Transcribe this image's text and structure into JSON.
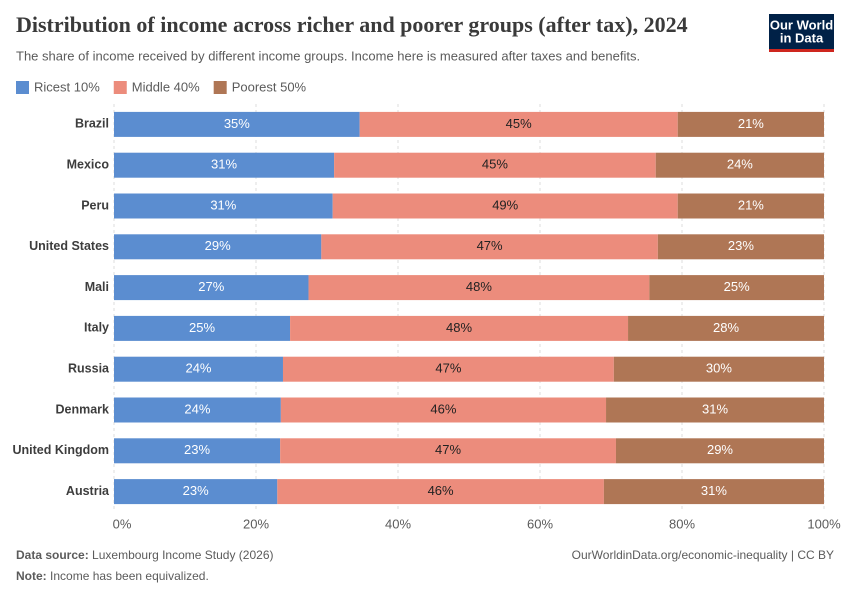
{
  "chart_data": {
    "type": "stacked-bar-horizontal",
    "title": "Distribution of income across richer and poorer groups (after tax), 2024",
    "subtitle": "The share of income received by different income groups. Income here is measured after taxes and benefits.",
    "logo": [
      "Our World",
      "in Data"
    ],
    "categories": [
      "Brazil",
      "Mexico",
      "Peru",
      "United States",
      "Mali",
      "Italy",
      "Russia",
      "Denmark",
      "United Kingdom",
      "Austria"
    ],
    "series": [
      {
        "name": "Ricest 10%",
        "color": "#5b8dd0",
        "label_color": "#ffffff",
        "values": [
          34.6,
          31.0,
          30.8,
          29.2,
          27.4,
          24.8,
          23.8,
          23.5,
          23.4,
          23.0
        ],
        "value_labels": [
          "35%",
          "31%",
          "31%",
          "29%",
          "27%",
          "25%",
          "24%",
          "24%",
          "23%",
          "23%"
        ]
      },
      {
        "name": "Middle 40%",
        "color": "#ec8c7c",
        "label_color": "#222222",
        "values": [
          44.8,
          45.3,
          48.6,
          47.4,
          48.0,
          47.6,
          46.6,
          45.8,
          47.3,
          46.0
        ],
        "value_labels": [
          "45%",
          "45%",
          "49%",
          "47%",
          "48%",
          "48%",
          "47%",
          "46%",
          "47%",
          "46%"
        ]
      },
      {
        "name": "Poorest 50%",
        "color": "#af7655",
        "label_color": "#ffffff",
        "values": [
          20.6,
          23.7,
          20.6,
          23.4,
          24.6,
          27.6,
          29.6,
          30.7,
          29.3,
          31.0
        ],
        "value_labels": [
          "21%",
          "24%",
          "21%",
          "23%",
          "25%",
          "28%",
          "30%",
          "31%",
          "29%",
          "31%"
        ]
      }
    ],
    "xlim": [
      0,
      100
    ],
    "xticks": [
      {
        "value": 0,
        "label": "0%"
      },
      {
        "value": 20,
        "label": "20%"
      },
      {
        "value": 40,
        "label": "40%"
      },
      {
        "value": 60,
        "label": "60%"
      },
      {
        "value": 80,
        "label": "80%"
      },
      {
        "value": 100,
        "label": "100%"
      }
    ],
    "grid": true,
    "source_label": "Data source:",
    "source": "Luxembourg Income Study (2026)",
    "url": "OurWorldinData.org/economic-inequality | CC BY",
    "note_label": "Note:",
    "note": "Income has been equivalized."
  }
}
